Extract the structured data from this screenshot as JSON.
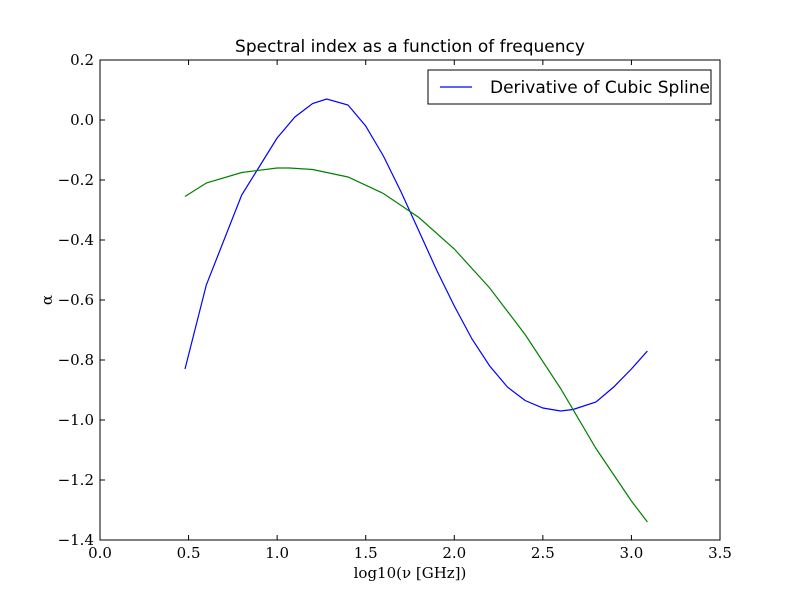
{
  "chart_data": {
    "type": "line",
    "title": "Spectral index as a function of frequency",
    "xlabel": "log10(ν [GHz])",
    "ylabel": "α",
    "xlim": [
      0.0,
      3.5
    ],
    "ylim": [
      -1.4,
      0.2
    ],
    "x_ticks": [
      "0.0",
      "0.5",
      "1.0",
      "1.5",
      "2.0",
      "2.5",
      "3.0",
      "3.5"
    ],
    "y_ticks": [
      "0.2",
      "0.0",
      "−0.2",
      "−0.4",
      "−0.6",
      "−0.8",
      "−1.0",
      "−1.2",
      "−1.4"
    ],
    "grid": false,
    "legend": {
      "placement": "top-right",
      "entries": [
        "Derivative of Cubic Spline"
      ]
    },
    "series": [
      {
        "name": "Derivative of Cubic Spline",
        "color": "#0000ff",
        "points": [
          [
            0.48,
            -0.83
          ],
          [
            0.6,
            -0.55
          ],
          [
            0.8,
            -0.25
          ],
          [
            1.0,
            -0.06
          ],
          [
            1.1,
            0.01
          ],
          [
            1.2,
            0.055
          ],
          [
            1.28,
            0.07
          ],
          [
            1.4,
            0.05
          ],
          [
            1.5,
            -0.02
          ],
          [
            1.6,
            -0.12
          ],
          [
            1.7,
            -0.24
          ],
          [
            1.8,
            -0.37
          ],
          [
            1.9,
            -0.5
          ],
          [
            2.0,
            -0.62
          ],
          [
            2.1,
            -0.73
          ],
          [
            2.2,
            -0.82
          ],
          [
            2.3,
            -0.89
          ],
          [
            2.4,
            -0.935
          ],
          [
            2.5,
            -0.96
          ],
          [
            2.6,
            -0.97
          ],
          [
            2.67,
            -0.965
          ],
          [
            2.8,
            -0.94
          ],
          [
            2.9,
            -0.89
          ],
          [
            3.0,
            -0.83
          ],
          [
            3.09,
            -0.77
          ]
        ]
      },
      {
        "color": "#008000",
        "points": [
          [
            0.48,
            -0.255
          ],
          [
            0.6,
            -0.21
          ],
          [
            0.8,
            -0.175
          ],
          [
            1.0,
            -0.16
          ],
          [
            1.07,
            -0.16
          ],
          [
            1.2,
            -0.165
          ],
          [
            1.4,
            -0.19
          ],
          [
            1.6,
            -0.245
          ],
          [
            1.8,
            -0.325
          ],
          [
            2.0,
            -0.43
          ],
          [
            2.2,
            -0.56
          ],
          [
            2.4,
            -0.715
          ],
          [
            2.6,
            -0.895
          ],
          [
            2.8,
            -1.095
          ],
          [
            3.0,
            -1.27
          ],
          [
            3.09,
            -1.34
          ]
        ]
      }
    ]
  }
}
